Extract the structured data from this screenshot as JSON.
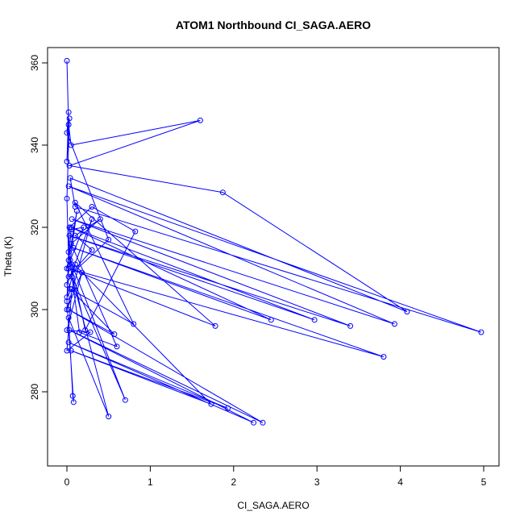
{
  "chart_data": {
    "type": "line",
    "title": "ATOM1 Northbound CI_SAGA.AERO",
    "xlabel": "CI_SAGA.AERO",
    "ylabel": "Theta (K)",
    "xlim": [
      0,
      5
    ],
    "ylim": [
      272,
      361
    ],
    "x_ticks": [
      0,
      1,
      2,
      3,
      4,
      5
    ],
    "y_ticks": [
      280,
      300,
      320,
      340,
      360
    ],
    "grid": false,
    "legend": "none",
    "marker": "open-circle",
    "series": [
      {
        "color": "#0000ff",
        "points": [
          [
            0.0,
            360.5
          ],
          [
            0.02,
            345.0
          ],
          [
            0.05,
            340.0
          ],
          [
            1.6,
            346.0
          ],
          [
            0.03,
            335.0
          ],
          [
            1.87,
            328.5
          ],
          [
            4.08,
            299.5
          ],
          [
            0.04,
            332.0
          ],
          [
            0.1,
            325.0
          ],
          [
            4.97,
            294.5
          ],
          [
            0.02,
            330.0
          ],
          [
            3.93,
            296.5
          ],
          [
            0.06,
            322.0
          ],
          [
            3.4,
            296.0
          ],
          [
            0.03,
            318.0
          ],
          [
            2.97,
            297.5
          ],
          [
            0.05,
            320.0
          ],
          [
            2.45,
            297.5
          ],
          [
            0.08,
            315.0
          ],
          [
            3.8,
            288.5
          ],
          [
            0.02,
            310.0
          ],
          [
            1.78,
            296.0
          ],
          [
            0.1,
            326.0
          ],
          [
            0.8,
            296.5
          ],
          [
            0.04,
            305.0
          ],
          [
            0.57,
            294.0
          ],
          [
            0.02,
            300.0
          ],
          [
            2.35,
            272.5
          ],
          [
            0.03,
            295.0
          ],
          [
            2.24,
            272.5
          ],
          [
            0.02,
            292.0
          ],
          [
            1.93,
            276.0
          ],
          [
            0.05,
            290.0
          ],
          [
            1.73,
            277.0
          ],
          [
            0.04,
            312.0
          ],
          [
            0.7,
            278.0
          ],
          [
            0.06,
            308.0
          ],
          [
            0.5,
            274.0
          ],
          [
            0.02,
            298.0
          ],
          [
            0.07,
            279.0
          ],
          [
            0.08,
            277.5
          ],
          [
            0.0,
            302.0
          ],
          [
            0.03,
            320.0
          ],
          [
            0.3,
            325.0
          ],
          [
            0.82,
            319.0
          ],
          [
            0.22,
            295.0
          ],
          [
            0.02,
            314.0
          ],
          [
            0.15,
            294.5
          ],
          [
            0.6,
            291.0
          ],
          [
            0.05,
            316.0
          ],
          [
            0.4,
            322.0
          ],
          [
            0.1,
            318.0
          ],
          [
            0.3,
            314.5
          ],
          [
            0.02,
            308.0
          ],
          [
            0.5,
            317.0
          ],
          [
            0.0,
            343.0
          ],
          [
            0.02,
            348.0
          ],
          [
            0.0,
            336.0
          ],
          [
            0.03,
            346.5
          ],
          [
            0.0,
            327.0
          ],
          [
            0.02,
            312.0
          ],
          [
            0.05,
            319.5
          ],
          [
            0.2,
            320.0
          ],
          [
            0.0,
            310.0
          ],
          [
            0.12,
            324.0
          ],
          [
            0.0,
            306.0
          ],
          [
            0.3,
            322.0
          ],
          [
            0.0,
            300.0
          ],
          [
            0.18,
            309.0
          ],
          [
            0.0,
            295.0
          ],
          [
            0.28,
            294.5
          ],
          [
            0.0,
            290.0
          ],
          [
            0.06,
            305.0
          ],
          [
            0.0,
            303.0
          ],
          [
            0.1,
            311.0
          ]
        ]
      }
    ]
  }
}
